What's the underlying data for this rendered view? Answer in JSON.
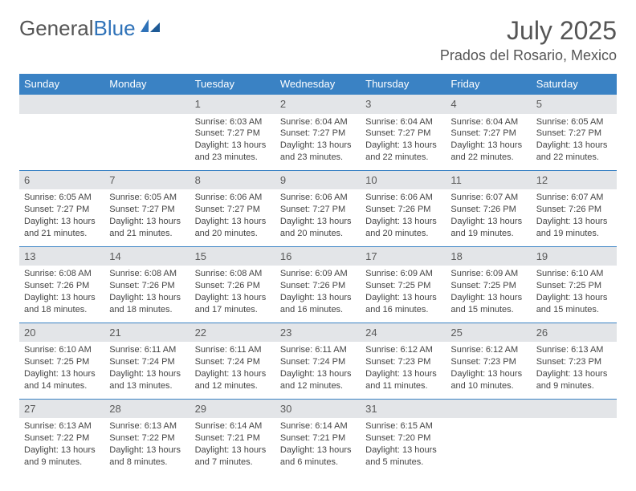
{
  "logo": {
    "text1": "General",
    "text2": "Blue"
  },
  "title": "July 2025",
  "location": "Prados del Rosario, Mexico",
  "colors": {
    "header_bg": "#3a82c4",
    "header_text": "#ffffff",
    "daynum_bg": "#e3e5e8",
    "daynum_text": "#5a5a5a",
    "body_text": "#444444",
    "logo_gray": "#555555",
    "logo_blue": "#2f72b8",
    "border": "#3a82c4"
  },
  "typography": {
    "title_fontsize": 32,
    "location_fontsize": 18,
    "dayheader_fontsize": 13,
    "daynum_fontsize": 13,
    "cell_fontsize": 11
  },
  "day_headers": [
    "Sunday",
    "Monday",
    "Tuesday",
    "Wednesday",
    "Thursday",
    "Friday",
    "Saturday"
  ],
  "weeks": [
    [
      {
        "n": "",
        "sr": "",
        "ss": "",
        "dl": ""
      },
      {
        "n": "",
        "sr": "",
        "ss": "",
        "dl": ""
      },
      {
        "n": "1",
        "sr": "Sunrise: 6:03 AM",
        "ss": "Sunset: 7:27 PM",
        "dl": "Daylight: 13 hours and 23 minutes."
      },
      {
        "n": "2",
        "sr": "Sunrise: 6:04 AM",
        "ss": "Sunset: 7:27 PM",
        "dl": "Daylight: 13 hours and 23 minutes."
      },
      {
        "n": "3",
        "sr": "Sunrise: 6:04 AM",
        "ss": "Sunset: 7:27 PM",
        "dl": "Daylight: 13 hours and 22 minutes."
      },
      {
        "n": "4",
        "sr": "Sunrise: 6:04 AM",
        "ss": "Sunset: 7:27 PM",
        "dl": "Daylight: 13 hours and 22 minutes."
      },
      {
        "n": "5",
        "sr": "Sunrise: 6:05 AM",
        "ss": "Sunset: 7:27 PM",
        "dl": "Daylight: 13 hours and 22 minutes."
      }
    ],
    [
      {
        "n": "6",
        "sr": "Sunrise: 6:05 AM",
        "ss": "Sunset: 7:27 PM",
        "dl": "Daylight: 13 hours and 21 minutes."
      },
      {
        "n": "7",
        "sr": "Sunrise: 6:05 AM",
        "ss": "Sunset: 7:27 PM",
        "dl": "Daylight: 13 hours and 21 minutes."
      },
      {
        "n": "8",
        "sr": "Sunrise: 6:06 AM",
        "ss": "Sunset: 7:27 PM",
        "dl": "Daylight: 13 hours and 20 minutes."
      },
      {
        "n": "9",
        "sr": "Sunrise: 6:06 AM",
        "ss": "Sunset: 7:27 PM",
        "dl": "Daylight: 13 hours and 20 minutes."
      },
      {
        "n": "10",
        "sr": "Sunrise: 6:06 AM",
        "ss": "Sunset: 7:26 PM",
        "dl": "Daylight: 13 hours and 20 minutes."
      },
      {
        "n": "11",
        "sr": "Sunrise: 6:07 AM",
        "ss": "Sunset: 7:26 PM",
        "dl": "Daylight: 13 hours and 19 minutes."
      },
      {
        "n": "12",
        "sr": "Sunrise: 6:07 AM",
        "ss": "Sunset: 7:26 PM",
        "dl": "Daylight: 13 hours and 19 minutes."
      }
    ],
    [
      {
        "n": "13",
        "sr": "Sunrise: 6:08 AM",
        "ss": "Sunset: 7:26 PM",
        "dl": "Daylight: 13 hours and 18 minutes."
      },
      {
        "n": "14",
        "sr": "Sunrise: 6:08 AM",
        "ss": "Sunset: 7:26 PM",
        "dl": "Daylight: 13 hours and 18 minutes."
      },
      {
        "n": "15",
        "sr": "Sunrise: 6:08 AM",
        "ss": "Sunset: 7:26 PM",
        "dl": "Daylight: 13 hours and 17 minutes."
      },
      {
        "n": "16",
        "sr": "Sunrise: 6:09 AM",
        "ss": "Sunset: 7:26 PM",
        "dl": "Daylight: 13 hours and 16 minutes."
      },
      {
        "n": "17",
        "sr": "Sunrise: 6:09 AM",
        "ss": "Sunset: 7:25 PM",
        "dl": "Daylight: 13 hours and 16 minutes."
      },
      {
        "n": "18",
        "sr": "Sunrise: 6:09 AM",
        "ss": "Sunset: 7:25 PM",
        "dl": "Daylight: 13 hours and 15 minutes."
      },
      {
        "n": "19",
        "sr": "Sunrise: 6:10 AM",
        "ss": "Sunset: 7:25 PM",
        "dl": "Daylight: 13 hours and 15 minutes."
      }
    ],
    [
      {
        "n": "20",
        "sr": "Sunrise: 6:10 AM",
        "ss": "Sunset: 7:25 PM",
        "dl": "Daylight: 13 hours and 14 minutes."
      },
      {
        "n": "21",
        "sr": "Sunrise: 6:11 AM",
        "ss": "Sunset: 7:24 PM",
        "dl": "Daylight: 13 hours and 13 minutes."
      },
      {
        "n": "22",
        "sr": "Sunrise: 6:11 AM",
        "ss": "Sunset: 7:24 PM",
        "dl": "Daylight: 13 hours and 12 minutes."
      },
      {
        "n": "23",
        "sr": "Sunrise: 6:11 AM",
        "ss": "Sunset: 7:24 PM",
        "dl": "Daylight: 13 hours and 12 minutes."
      },
      {
        "n": "24",
        "sr": "Sunrise: 6:12 AM",
        "ss": "Sunset: 7:23 PM",
        "dl": "Daylight: 13 hours and 11 minutes."
      },
      {
        "n": "25",
        "sr": "Sunrise: 6:12 AM",
        "ss": "Sunset: 7:23 PM",
        "dl": "Daylight: 13 hours and 10 minutes."
      },
      {
        "n": "26",
        "sr": "Sunrise: 6:13 AM",
        "ss": "Sunset: 7:23 PM",
        "dl": "Daylight: 13 hours and 9 minutes."
      }
    ],
    [
      {
        "n": "27",
        "sr": "Sunrise: 6:13 AM",
        "ss": "Sunset: 7:22 PM",
        "dl": "Daylight: 13 hours and 9 minutes."
      },
      {
        "n": "28",
        "sr": "Sunrise: 6:13 AM",
        "ss": "Sunset: 7:22 PM",
        "dl": "Daylight: 13 hours and 8 minutes."
      },
      {
        "n": "29",
        "sr": "Sunrise: 6:14 AM",
        "ss": "Sunset: 7:21 PM",
        "dl": "Daylight: 13 hours and 7 minutes."
      },
      {
        "n": "30",
        "sr": "Sunrise: 6:14 AM",
        "ss": "Sunset: 7:21 PM",
        "dl": "Daylight: 13 hours and 6 minutes."
      },
      {
        "n": "31",
        "sr": "Sunrise: 6:15 AM",
        "ss": "Sunset: 7:20 PM",
        "dl": "Daylight: 13 hours and 5 minutes."
      },
      {
        "n": "",
        "sr": "",
        "ss": "",
        "dl": ""
      },
      {
        "n": "",
        "sr": "",
        "ss": "",
        "dl": ""
      }
    ]
  ]
}
